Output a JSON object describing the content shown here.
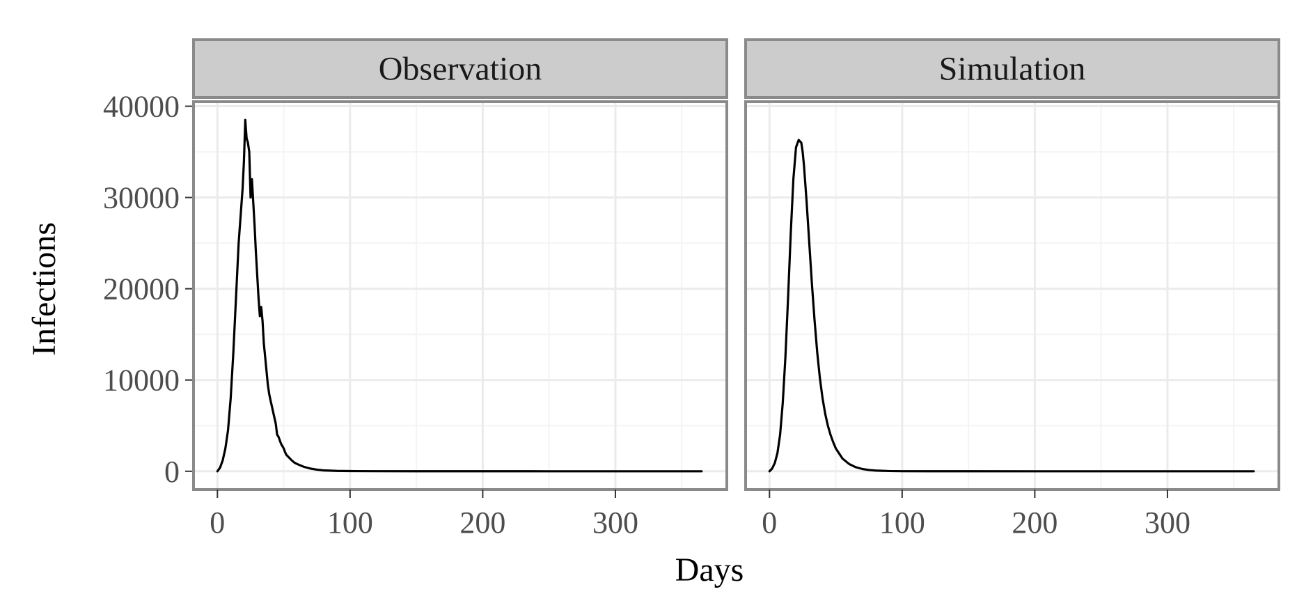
{
  "chart_data": {
    "type": "line",
    "xlabel": "Days",
    "ylabel": "Infections",
    "xlim": [
      -18,
      384
    ],
    "ylim": [
      -2000,
      40500
    ],
    "x_ticks": [
      0,
      100,
      200,
      300
    ],
    "x_minor_ticks": [
      50,
      150,
      250,
      350
    ],
    "y_ticks": [
      0,
      10000,
      20000,
      30000,
      40000
    ],
    "y_minor_ticks": [
      5000,
      15000,
      25000,
      35000
    ],
    "x_tick_labels": [
      "0",
      "100",
      "200",
      "300"
    ],
    "y_tick_labels": [
      "0",
      "10000",
      "20000",
      "30000",
      "40000"
    ],
    "grid": true,
    "legend": "none",
    "colors": {
      "line": "#000000",
      "panel_border": "#8a8a8a",
      "strip_fill": "#cccccc",
      "grid_major": "#ebebeb",
      "grid_minor": "#f4f4f4"
    },
    "panels": [
      {
        "title": "Observation",
        "series": [
          {
            "x": [
              0,
              2,
              4,
              6,
              8,
              10,
              12,
              14,
              16,
              18,
              19,
              20,
              21,
              22,
              23,
              24,
              25,
              26,
              27,
              28,
              29,
              30,
              31,
              32,
              33,
              34,
              35,
              36,
              37,
              38,
              39,
              40,
              42,
              44,
              45,
              46,
              48,
              50,
              51,
              52,
              54,
              56,
              58,
              60,
              65,
              70,
              75,
              80,
              90,
              100,
              120,
              150,
              200,
              250,
              300,
              365
            ],
            "y": [
              0,
              400,
              1200,
              2500,
              4500,
              8000,
              13000,
              19000,
              25000,
              29000,
              31000,
              34000,
              38500,
              36500,
              36000,
              35000,
              30000,
              32000,
              29500,
              27000,
              24000,
              21500,
              19000,
              17000,
              18000,
              16500,
              14000,
              12500,
              11000,
              9500,
              8500,
              7800,
              6500,
              5200,
              4000,
              3800,
              3000,
              2500,
              2100,
              1800,
              1500,
              1200,
              950,
              800,
              500,
              300,
              180,
              100,
              40,
              20,
              8,
              3,
              1,
              0,
              0,
              0
            ]
          }
        ]
      },
      {
        "title": "Simulation",
        "series": [
          {
            "x": [
              0,
              2,
              4,
              6,
              8,
              10,
              12,
              14,
              16,
              18,
              20,
              22,
              24,
              25,
              26,
              28,
              30,
              32,
              34,
              36,
              38,
              40,
              42,
              44,
              46,
              48,
              50,
              55,
              60,
              65,
              70,
              75,
              80,
              90,
              100,
              120,
              150,
              200,
              250,
              300,
              365
            ],
            "y": [
              0,
              300,
              900,
              2000,
              4000,
              7500,
              12500,
              19000,
              26000,
              32000,
              35500,
              36300,
              36000,
              35000,
              33500,
              29500,
              25000,
              20500,
              16500,
              13000,
              10200,
              8000,
              6300,
              5000,
              4000,
              3200,
              2500,
              1400,
              800,
              450,
              250,
              140,
              80,
              25,
              8,
              2,
              1,
              0,
              0,
              0,
              0
            ]
          }
        ]
      }
    ]
  }
}
